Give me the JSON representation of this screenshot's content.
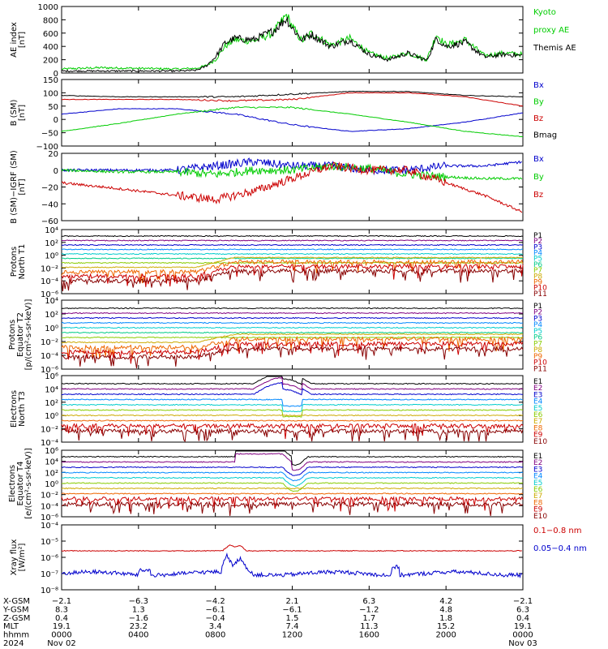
{
  "panels": [
    {
      "id": "ae",
      "ylabel": [
        "AE index",
        "[nT]"
      ],
      "ticks": [
        "1000",
        "800",
        "600",
        "400",
        "200",
        "0"
      ],
      "legend": [
        {
          "text": "Kyoto",
          "color": "#00cc00"
        },
        {
          "text": "proxy AE",
          "color": "#00cc00"
        },
        {
          "text": "Themis AE",
          "color": "#000000"
        }
      ]
    },
    {
      "id": "bsm",
      "ylabel": [
        "B (SM)",
        "[nT]"
      ],
      "ticks": [
        "150",
        "100",
        "50",
        "0",
        "−50",
        "−100"
      ],
      "legend": [
        {
          "text": "Bx",
          "color": "#0000cc"
        },
        {
          "text": "By",
          "color": "#00cc00"
        },
        {
          "text": "Bz",
          "color": "#cc0000"
        },
        {
          "text": "Bmag",
          "color": "#000000"
        }
      ]
    },
    {
      "id": "bigrf",
      "ylabel": [
        "B (SM)−IGRF (SM)",
        "[nT]"
      ],
      "ticks": [
        "20",
        "0",
        "−20",
        "−40",
        "−60"
      ],
      "legend": [
        {
          "text": "Bx",
          "color": "#0000cc"
        },
        {
          "text": "By",
          "color": "#00cc00"
        },
        {
          "text": "Bz",
          "color": "#cc0000"
        }
      ]
    },
    {
      "id": "pt1",
      "ylabel": [
        "Protons",
        "North T1"
      ],
      "ticks": [
        "10⁴",
        "10²",
        "10⁰",
        "10⁻²",
        "10⁻⁴",
        "10⁻⁶"
      ],
      "legend": [
        {
          "text": "P1",
          "color": "#000000"
        },
        {
          "text": "P2",
          "color": "#800080"
        },
        {
          "text": "P3",
          "color": "#0000cc"
        },
        {
          "text": "P4",
          "color": "#0088ff"
        },
        {
          "text": "P5",
          "color": "#00cccc"
        },
        {
          "text": "P6",
          "color": "#00cc88"
        },
        {
          "text": "P7",
          "color": "#88cc00"
        },
        {
          "text": "P8",
          "color": "#ccaa00"
        },
        {
          "text": "P9",
          "color": "#ee6600"
        },
        {
          "text": "P10",
          "color": "#cc0000"
        },
        {
          "text": "P11",
          "color": "#880000"
        }
      ]
    },
    {
      "id": "pt2",
      "ylabel": [
        "Protons",
        "Equator T2",
        "[p/(cm²-s-sr-keV)]"
      ],
      "ticks": [
        "10⁴",
        "10²",
        "10⁰",
        "10⁻²",
        "10⁻⁴",
        "10⁻⁶"
      ],
      "legend": [
        {
          "text": "P1",
          "color": "#000000"
        },
        {
          "text": "P2",
          "color": "#800080"
        },
        {
          "text": "P3",
          "color": "#0000cc"
        },
        {
          "text": "P4",
          "color": "#0088ff"
        },
        {
          "text": "P5",
          "color": "#00cccc"
        },
        {
          "text": "P6",
          "color": "#00cc88"
        },
        {
          "text": "P7",
          "color": "#88cc00"
        },
        {
          "text": "P8",
          "color": "#ccaa00"
        },
        {
          "text": "P9",
          "color": "#ee6600"
        },
        {
          "text": "P10",
          "color": "#cc0000"
        },
        {
          "text": "P11",
          "color": "#880000"
        }
      ]
    },
    {
      "id": "et3",
      "ylabel": [
        "Electrons",
        "North T3"
      ],
      "ticks": [
        "10⁶",
        "10⁴",
        "10²",
        "10⁰",
        "10⁻²",
        "10⁻⁴"
      ],
      "legend": [
        {
          "text": "E1",
          "color": "#000000"
        },
        {
          "text": "E2",
          "color": "#800080"
        },
        {
          "text": "E3",
          "color": "#0000cc"
        },
        {
          "text": "E4",
          "color": "#0088ff"
        },
        {
          "text": "E5",
          "color": "#00cccc"
        },
        {
          "text": "E6",
          "color": "#88cc00"
        },
        {
          "text": "E7",
          "color": "#ccaa00"
        },
        {
          "text": "E8",
          "color": "#ee6600"
        },
        {
          "text": "E9",
          "color": "#cc0000"
        },
        {
          "text": "E10",
          "color": "#880000"
        }
      ]
    },
    {
      "id": "et4",
      "ylabel": [
        "Electrons",
        "Equator T4",
        "[e/(cm²-s-sr-keV)]"
      ],
      "ticks": [
        "10⁶",
        "10⁴",
        "10²",
        "10⁰",
        "10⁻²",
        "10⁻⁴",
        "10⁻⁶"
      ],
      "legend": [
        {
          "text": "E1",
          "color": "#000000"
        },
        {
          "text": "E2",
          "color": "#800080"
        },
        {
          "text": "E3",
          "color": "#0000cc"
        },
        {
          "text": "E4",
          "color": "#0088ff"
        },
        {
          "text": "E5",
          "color": "#00cccc"
        },
        {
          "text": "E6",
          "color": "#88cc00"
        },
        {
          "text": "E7",
          "color": "#ccaa00"
        },
        {
          "text": "E8",
          "color": "#ee6600"
        },
        {
          "text": "E9",
          "color": "#cc0000"
        },
        {
          "text": "E10",
          "color": "#880000"
        }
      ]
    },
    {
      "id": "xray",
      "ylabel": [
        "Xray flux",
        "[W/m²]"
      ],
      "ticks": [
        "10⁻⁴",
        "10⁻⁵",
        "10⁻⁶",
        "10⁻⁷",
        "10⁻⁸"
      ],
      "legend": [
        {
          "text": "0.1−0.8 nm",
          "color": "#cc0000"
        },
        {
          "text": "0.05−0.4 nm",
          "color": "#0000cc"
        }
      ]
    }
  ],
  "orbit_table": {
    "row_labels": [
      "X-GSM",
      "Y-GSM",
      "Z-GSM",
      "MLT",
      "hhmm",
      "2024"
    ],
    "columns": [
      [
        "−2.1",
        "8.3",
        "0.4",
        "19.1",
        "0000",
        "Nov 02"
      ],
      [
        "−6.3",
        "1.3",
        "−1.6",
        "23.2",
        "0400",
        ""
      ],
      [
        "−4.2",
        "−6.1",
        "−0.4",
        "3.4",
        "0800",
        ""
      ],
      [
        "2.1",
        "−6.1",
        "1.5",
        "7.4",
        "1200",
        ""
      ],
      [
        "6.3",
        "−1.2",
        "1.7",
        "11.3",
        "1600",
        ""
      ],
      [
        "4.2",
        "4.8",
        "1.8",
        "15.2",
        "2000",
        ""
      ],
      [
        "−2.1",
        "6.3",
        "0.4",
        "19.1",
        "0000",
        "Nov 03"
      ]
    ]
  },
  "chart_data": [
    {
      "type": "line",
      "panel": "AE index",
      "x_range_hours": [
        0,
        24
      ],
      "ylim": [
        0,
        1000
      ],
      "ylabel": "AE index [nT]",
      "series": [
        {
          "name": "Kyoto proxy AE",
          "color": "#00cc00",
          "x": [
            0,
            2,
            4,
            6,
            7,
            7.5,
            8,
            8.5,
            9,
            10,
            11,
            11.7,
            12,
            12.5,
            13,
            14,
            15,
            16,
            17,
            18,
            19,
            19.5,
            20,
            21,
            22,
            23,
            24
          ],
          "values": [
            60,
            80,
            70,
            60,
            70,
            110,
            200,
            400,
            500,
            480,
            600,
            870,
            700,
            480,
            600,
            420,
            520,
            300,
            220,
            300,
            200,
            580,
            420,
            500,
            260,
            300,
            280
          ]
        },
        {
          "name": "Themis AE",
          "color": "#000000",
          "x": [
            0,
            2,
            4,
            6,
            7,
            7.5,
            8,
            8.5,
            9,
            10,
            11,
            11.7,
            12,
            12.5,
            13,
            14,
            15,
            16,
            17,
            18,
            19,
            19.5,
            20,
            21,
            22,
            23,
            24
          ],
          "values": [
            30,
            30,
            30,
            30,
            40,
            100,
            240,
            450,
            520,
            500,
            630,
            820,
            680,
            500,
            580,
            400,
            500,
            280,
            200,
            300,
            190,
            520,
            400,
            460,
            240,
            280,
            260
          ]
        }
      ]
    },
    {
      "type": "line",
      "panel": "B (SM)",
      "x_range_hours": [
        0,
        24
      ],
      "ylim": [
        -100,
        150
      ],
      "ylabel": "B (SM) [nT]",
      "series": [
        {
          "name": "Bx",
          "color": "#0000cc",
          "x": [
            0,
            3,
            6,
            9,
            12,
            15,
            18,
            21,
            24
          ],
          "values": [
            20,
            40,
            40,
            20,
            -20,
            -45,
            -35,
            -10,
            25
          ]
        },
        {
          "name": "By",
          "color": "#00cc00",
          "x": [
            0,
            3,
            6,
            9,
            12,
            15,
            18,
            21,
            24
          ],
          "values": [
            -45,
            -15,
            20,
            45,
            45,
            20,
            -10,
            -45,
            -65
          ]
        },
        {
          "name": "Bz",
          "color": "#cc0000",
          "x": [
            0,
            3,
            6,
            9,
            12,
            15,
            18,
            21,
            24
          ],
          "values": [
            75,
            75,
            75,
            70,
            75,
            100,
            100,
            85,
            50
          ]
        },
        {
          "name": "Bmag",
          "color": "#000000",
          "x": [
            0,
            3,
            6,
            9,
            12,
            15,
            18,
            21,
            24
          ],
          "values": [
            90,
            85,
            85,
            85,
            95,
            105,
            105,
            90,
            85
          ]
        }
      ]
    },
    {
      "type": "line",
      "panel": "B (SM)-IGRF (SM)",
      "x_range_hours": [
        0,
        24
      ],
      "ylim": [
        -60,
        20
      ],
      "ylabel": "B (SM)-IGRF (SM) [nT]",
      "series": [
        {
          "name": "Bx",
          "color": "#0000cc",
          "x": [
            0,
            3,
            6,
            8,
            10,
            12,
            14,
            16,
            18,
            20,
            22,
            24
          ],
          "values": [
            0,
            0,
            0,
            5,
            10,
            5,
            5,
            0,
            0,
            5,
            5,
            10
          ]
        },
        {
          "name": "By",
          "color": "#00cc00",
          "x": [
            0,
            3,
            6,
            8,
            10,
            12,
            14,
            16,
            18,
            20,
            22,
            24
          ],
          "values": [
            0,
            -2,
            -2,
            -5,
            0,
            0,
            5,
            2,
            -5,
            -8,
            -10,
            -10
          ]
        },
        {
          "name": "Bz",
          "color": "#cc0000",
          "x": [
            0,
            3,
            6,
            8,
            10,
            12,
            14,
            16,
            18,
            20,
            22,
            24
          ],
          "values": [
            -15,
            -22,
            -30,
            -35,
            -25,
            -10,
            5,
            0,
            0,
            -15,
            -30,
            -50
          ]
        }
      ]
    }
  ],
  "labels": {
    "xtick_hhmm": [
      "0000",
      "0400",
      "0800",
      "1200",
      "1600",
      "2000",
      "0000"
    ]
  }
}
